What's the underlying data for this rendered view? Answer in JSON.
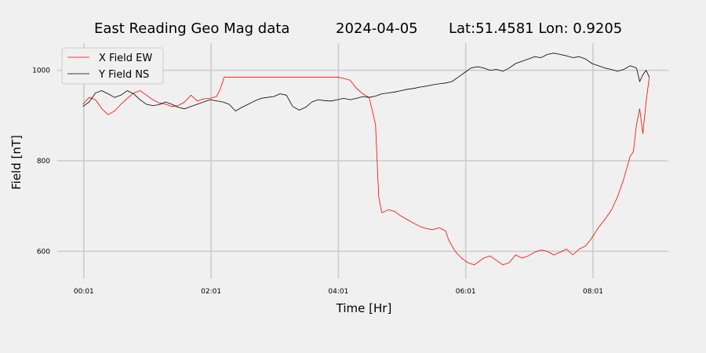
{
  "chart_data": {
    "type": "line",
    "title_parts": [
      "East Reading Geo Mag data",
      "2024-04-05",
      "Lat:51.4581  Lon: 0.9205"
    ],
    "xlabel": "Time  [Hr]",
    "ylabel": "Field  [nT]",
    "xlim": [
      -0.4,
      9.2
    ],
    "ylim": [
      540,
      1060
    ],
    "x_ticks": [
      {
        "value": 0.0167,
        "label": "00:01"
      },
      {
        "value": 2.0167,
        "label": "02:01"
      },
      {
        "value": 4.0167,
        "label": "04:01"
      },
      {
        "value": 6.0167,
        "label": "06:01"
      },
      {
        "value": 8.0167,
        "label": "08:01"
      }
    ],
    "y_ticks": [
      600,
      800,
      1000
    ],
    "grid": true,
    "legend_position": "top-left",
    "series": [
      {
        "name": "X Field EW",
        "color": "#ff0000",
        "points": [
          [
            0.0,
            925
          ],
          [
            0.1,
            940
          ],
          [
            0.2,
            935
          ],
          [
            0.3,
            915
          ],
          [
            0.4,
            902
          ],
          [
            0.5,
            910
          ],
          [
            0.6,
            925
          ],
          [
            0.7,
            938
          ],
          [
            0.8,
            950
          ],
          [
            0.9,
            955
          ],
          [
            1.0,
            945
          ],
          [
            1.1,
            935
          ],
          [
            1.2,
            928
          ],
          [
            1.3,
            925
          ],
          [
            1.4,
            920
          ],
          [
            1.5,
            922
          ],
          [
            1.6,
            930
          ],
          [
            1.7,
            945
          ],
          [
            1.8,
            932
          ],
          [
            1.9,
            937
          ],
          [
            2.0,
            938
          ],
          [
            2.1,
            942
          ],
          [
            2.15,
            955
          ],
          [
            2.2,
            975
          ],
          [
            2.22,
            985
          ],
          [
            4.0,
            985
          ],
          [
            4.1,
            982
          ],
          [
            4.2,
            978
          ],
          [
            4.3,
            960
          ],
          [
            4.4,
            948
          ],
          [
            4.5,
            940
          ],
          [
            4.6,
            880
          ],
          [
            4.65,
            720
          ],
          [
            4.7,
            685
          ],
          [
            4.8,
            692
          ],
          [
            4.9,
            688
          ],
          [
            5.0,
            678
          ],
          [
            5.1,
            670
          ],
          [
            5.2,
            662
          ],
          [
            5.3,
            655
          ],
          [
            5.4,
            650
          ],
          [
            5.5,
            648
          ],
          [
            5.6,
            652
          ],
          [
            5.7,
            645
          ],
          [
            5.75,
            625
          ],
          [
            5.85,
            600
          ],
          [
            5.95,
            585
          ],
          [
            6.05,
            575
          ],
          [
            6.15,
            570
          ],
          [
            6.3,
            585
          ],
          [
            6.4,
            590
          ],
          [
            6.5,
            580
          ],
          [
            6.6,
            570
          ],
          [
            6.7,
            575
          ],
          [
            6.8,
            592
          ],
          [
            6.9,
            585
          ],
          [
            7.0,
            590
          ],
          [
            7.1,
            598
          ],
          [
            7.2,
            603
          ],
          [
            7.3,
            600
          ],
          [
            7.4,
            592
          ],
          [
            7.5,
            598
          ],
          [
            7.6,
            605
          ],
          [
            7.7,
            592
          ],
          [
            7.8,
            605
          ],
          [
            7.9,
            612
          ],
          [
            8.0,
            630
          ],
          [
            8.1,
            652
          ],
          [
            8.2,
            670
          ],
          [
            8.3,
            690
          ],
          [
            8.4,
            720
          ],
          [
            8.5,
            760
          ],
          [
            8.6,
            810
          ],
          [
            8.65,
            820
          ],
          [
            8.7,
            880
          ],
          [
            8.75,
            915
          ],
          [
            8.8,
            860
          ],
          [
            8.85,
            930
          ],
          [
            8.9,
            985
          ]
        ]
      },
      {
        "name": "Y Field NS",
        "color": "#000000",
        "points": [
          [
            0.0,
            920
          ],
          [
            0.1,
            930
          ],
          [
            0.2,
            950
          ],
          [
            0.3,
            955
          ],
          [
            0.4,
            948
          ],
          [
            0.5,
            940
          ],
          [
            0.6,
            945
          ],
          [
            0.7,
            955
          ],
          [
            0.8,
            948
          ],
          [
            0.9,
            935
          ],
          [
            1.0,
            925
          ],
          [
            1.1,
            922
          ],
          [
            1.2,
            924
          ],
          [
            1.3,
            930
          ],
          [
            1.4,
            925
          ],
          [
            1.5,
            918
          ],
          [
            1.6,
            915
          ],
          [
            1.7,
            920
          ],
          [
            1.8,
            925
          ],
          [
            1.9,
            930
          ],
          [
            2.0,
            935
          ],
          [
            2.2,
            930
          ],
          [
            2.3,
            925
          ],
          [
            2.4,
            910
          ],
          [
            2.5,
            918
          ],
          [
            2.6,
            925
          ],
          [
            2.7,
            932
          ],
          [
            2.8,
            938
          ],
          [
            2.9,
            940
          ],
          [
            3.0,
            942
          ],
          [
            3.1,
            948
          ],
          [
            3.2,
            945
          ],
          [
            3.3,
            920
          ],
          [
            3.4,
            912
          ],
          [
            3.5,
            918
          ],
          [
            3.6,
            930
          ],
          [
            3.7,
            935
          ],
          [
            3.8,
            933
          ],
          [
            3.9,
            932
          ],
          [
            4.0,
            935
          ],
          [
            4.1,
            938
          ],
          [
            4.2,
            935
          ],
          [
            4.3,
            938
          ],
          [
            4.4,
            942
          ],
          [
            4.5,
            940
          ],
          [
            4.6,
            943
          ],
          [
            4.7,
            948
          ],
          [
            4.8,
            950
          ],
          [
            4.9,
            952
          ],
          [
            5.0,
            955
          ],
          [
            5.1,
            958
          ],
          [
            5.2,
            960
          ],
          [
            5.3,
            963
          ],
          [
            5.4,
            965
          ],
          [
            5.5,
            968
          ],
          [
            5.6,
            970
          ],
          [
            5.7,
            972
          ],
          [
            5.8,
            975
          ],
          [
            5.9,
            985
          ],
          [
            6.0,
            995
          ],
          [
            6.1,
            1005
          ],
          [
            6.2,
            1008
          ],
          [
            6.3,
            1005
          ],
          [
            6.4,
            1000
          ],
          [
            6.5,
            1002
          ],
          [
            6.6,
            998
          ],
          [
            6.7,
            1005
          ],
          [
            6.8,
            1015
          ],
          [
            6.9,
            1020
          ],
          [
            7.0,
            1025
          ],
          [
            7.1,
            1030
          ],
          [
            7.2,
            1028
          ],
          [
            7.3,
            1035
          ],
          [
            7.4,
            1038
          ],
          [
            7.5,
            1035
          ],
          [
            7.6,
            1032
          ],
          [
            7.7,
            1028
          ],
          [
            7.8,
            1030
          ],
          [
            7.9,
            1025
          ],
          [
            8.0,
            1015
          ],
          [
            8.1,
            1010
          ],
          [
            8.2,
            1005
          ],
          [
            8.3,
            1002
          ],
          [
            8.4,
            998
          ],
          [
            8.5,
            1002
          ],
          [
            8.6,
            1010
          ],
          [
            8.7,
            1005
          ],
          [
            8.75,
            975
          ],
          [
            8.8,
            990
          ],
          [
            8.85,
            1000
          ],
          [
            8.9,
            985
          ]
        ]
      }
    ]
  }
}
